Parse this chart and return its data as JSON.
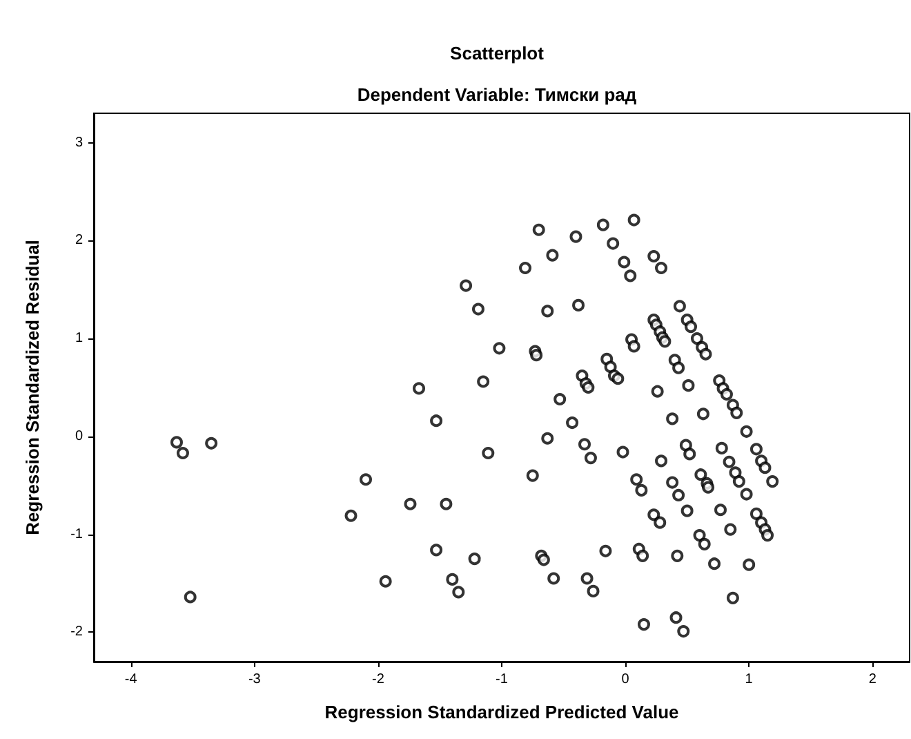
{
  "chart_data": {
    "type": "scatter",
    "title": "Scatterplot",
    "subtitle": "Dependent Variable: Тимски рад",
    "xlabel": "Regression Standardized Predicted Value",
    "ylabel": "Regression Standardized Residual",
    "xlim": [
      -4.3,
      2.3
    ],
    "xticks": [
      -4,
      -3,
      -2,
      -1,
      0,
      1,
      2
    ],
    "ylim": [
      -2.3,
      3.3
    ],
    "yticks": [
      -2,
      -1,
      0,
      1,
      2,
      3
    ],
    "marker": "circle",
    "series": [
      {
        "color": "#000000",
        "x": [
          -3.63,
          -3.58,
          -3.35,
          -3.52,
          -2.1,
          -2.22,
          -1.94,
          -1.74,
          -0.7,
          -0.4,
          -0.18,
          0.07,
          -0.1,
          -0.59,
          -0.81,
          -0.01,
          0.04,
          -1.29,
          -1.19,
          -0.63,
          -0.38,
          0.05,
          0.07,
          -1.02,
          -0.73,
          -0.72,
          -0.15,
          -0.12,
          -0.09,
          -0.06,
          -0.35,
          -0.32,
          -0.3,
          -1.67,
          -1.15,
          -0.53,
          -1.53,
          -0.43,
          -0.63,
          -0.33,
          -1.11,
          -0.02,
          -0.28,
          -0.75,
          0.09,
          0.13,
          -1.45,
          -1.53,
          -1.22,
          -1.4,
          -1.35,
          -0.68,
          -0.66,
          -0.58,
          -0.31,
          -0.26,
          -0.16,
          0.11,
          0.14,
          0.15,
          0.23,
          0.29,
          0.44,
          0.23,
          0.25,
          0.28,
          0.3,
          0.32,
          0.5,
          0.53,
          0.58,
          0.62,
          0.65,
          0.4,
          0.43,
          0.76,
          0.79,
          0.82,
          0.26,
          0.51,
          0.87,
          0.9,
          0.38,
          0.63,
          0.98,
          0.49,
          0.78,
          1.06,
          0.52,
          0.29,
          0.84,
          1.1,
          1.13,
          0.89,
          0.92,
          1.19,
          0.61,
          0.66,
          0.67,
          0.38,
          0.43,
          0.98,
          0.23,
          0.28,
          0.5,
          0.77,
          1.06,
          1.1,
          1.13,
          1.15,
          0.85,
          0.6,
          0.64,
          0.42,
          0.72,
          1.0,
          0.87,
          0.41,
          0.47
        ],
        "values": [
          -0.06,
          -0.17,
          -0.07,
          -1.64,
          -0.44,
          -0.81,
          -1.48,
          -0.69,
          2.11,
          2.04,
          2.16,
          2.21,
          1.97,
          1.85,
          1.72,
          1.78,
          1.64,
          1.54,
          1.3,
          1.28,
          1.34,
          0.99,
          0.92,
          0.9,
          0.87,
          0.83,
          0.79,
          0.71,
          0.62,
          0.59,
          0.62,
          0.54,
          0.5,
          0.49,
          0.56,
          0.38,
          0.16,
          0.14,
          -0.02,
          -0.08,
          -0.17,
          -0.16,
          -0.22,
          -0.4,
          -0.44,
          -0.55,
          -0.69,
          -1.16,
          -1.25,
          -1.46,
          -1.59,
          -1.22,
          -1.26,
          -1.45,
          -1.45,
          -1.58,
          -1.17,
          -1.15,
          -1.22,
          -1.92,
          1.84,
          1.72,
          1.33,
          1.19,
          1.14,
          1.07,
          1.01,
          0.97,
          1.19,
          1.12,
          1.0,
          0.91,
          0.84,
          0.78,
          0.7,
          0.57,
          0.49,
          0.43,
          0.46,
          0.52,
          0.32,
          0.24,
          0.18,
          0.23,
          0.05,
          -0.09,
          -0.12,
          -0.13,
          -0.18,
          -0.25,
          -0.26,
          -0.25,
          -0.32,
          -0.37,
          -0.46,
          -0.46,
          -0.39,
          -0.48,
          -0.52,
          -0.47,
          -0.6,
          -0.59,
          -0.8,
          -0.88,
          -0.76,
          -0.75,
          -0.79,
          -0.88,
          -0.95,
          -1.01,
          -0.95,
          -1.01,
          -1.1,
          -1.22,
          -1.3,
          -1.31,
          -1.65,
          -1.85,
          -1.99
        ]
      }
    ]
  }
}
